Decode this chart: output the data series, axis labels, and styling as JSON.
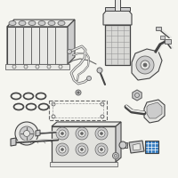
{
  "bg_color": "#f5f5f0",
  "line_color": "#999999",
  "dark_color": "#666666",
  "darker_color": "#444444",
  "blue_color": "#3a7fc1",
  "light_gray": "#cccccc",
  "mid_gray": "#aaaaaa",
  "fill_gray": "#e8e8e5",
  "fig_size": [
    2.0,
    2.0
  ],
  "dpi": 100
}
